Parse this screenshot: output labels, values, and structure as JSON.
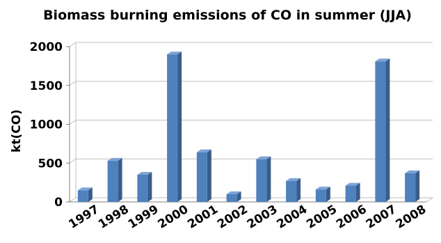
{
  "chart_data": {
    "type": "bar",
    "title": "Biomass burning emissions of CO in summer (JJA)",
    "xlabel": "",
    "ylabel": "kt(CO)",
    "categories": [
      "1997",
      "1998",
      "1999",
      "2000",
      "2001",
      "2002",
      "2003",
      "2004",
      "2005",
      "2006",
      "2007",
      "2008"
    ],
    "values": [
      150,
      530,
      350,
      1900,
      640,
      100,
      550,
      270,
      160,
      210,
      1810,
      370
    ],
    "ylim": [
      0,
      2000
    ],
    "yticks": [
      "0",
      "500",
      "1000",
      "1500",
      "2000"
    ],
    "grid": true,
    "legend": "none",
    "colors": {
      "bar_front": "#4f81bd",
      "bar_side": "#385d8a",
      "bar_top": "#7ea4d6",
      "grid": "#bfbfbf",
      "axis": "#7f7f7f"
    }
  }
}
